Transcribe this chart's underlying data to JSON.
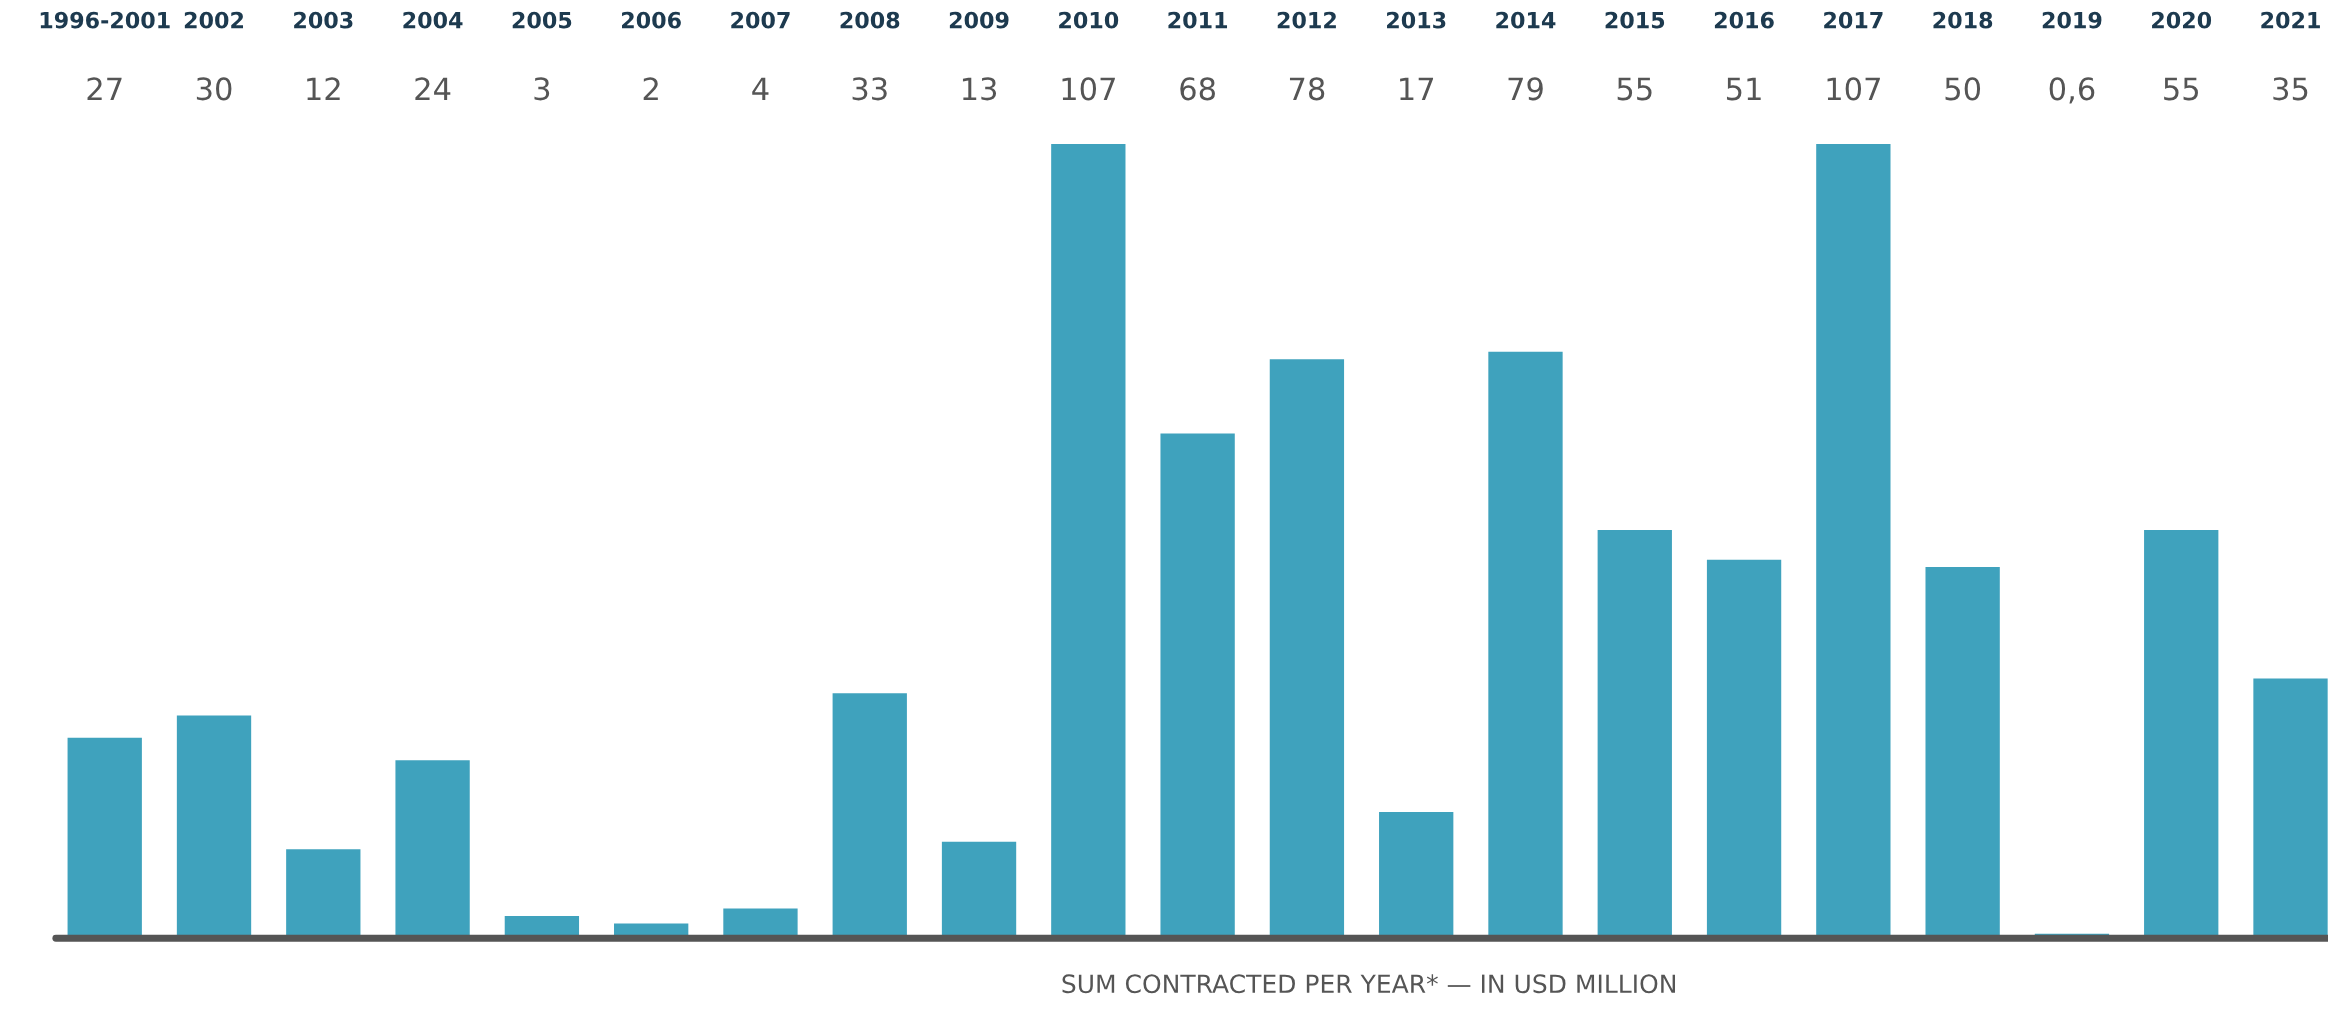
{
  "chart_data": {
    "type": "bar",
    "xlabel": "SUM CONTRACTED PER YEAR* — IN USD MILLION",
    "categories": [
      "1996-2001",
      "2002",
      "2003",
      "2004",
      "2005",
      "2006",
      "2007",
      "2008",
      "2009",
      "2010",
      "2011",
      "2012",
      "2013",
      "2014",
      "2015",
      "2016",
      "2017",
      "2018",
      "2019",
      "2020",
      "2021"
    ],
    "values": [
      27,
      30,
      12,
      24,
      3,
      2,
      4,
      33,
      13,
      107,
      68,
      78,
      17,
      79,
      55,
      51,
      107,
      50,
      0.6,
      55,
      35
    ],
    "value_labels": [
      "27",
      "30",
      "12",
      "24",
      "3",
      "2",
      "4",
      "33",
      "13",
      "107",
      "68",
      "78",
      "17",
      "79",
      "55",
      "51",
      "107",
      "50",
      "0,6",
      "55",
      "35"
    ],
    "color": "#3fa2bd",
    "tick_labels": "x",
    "grid": false,
    "legend": false
  }
}
